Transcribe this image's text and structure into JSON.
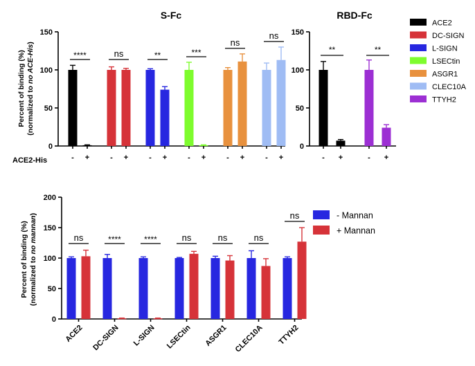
{
  "colors": {
    "ACE2": "#000000",
    "DC-SIGN": "#d63339",
    "L-SIGN": "#2727e0",
    "LSECtin": "#7efc2e",
    "ASGR1": "#e8913e",
    "CLEC10A": "#9fbcf4",
    "TTYH2": "#9c2fd3",
    "minus_mannan": "#2727e0",
    "plus_mannan": "#d63339"
  },
  "chart_data": [
    {
      "id": "sfc",
      "type": "bar",
      "title": "S-Fc",
      "ylabel_line1": "Percent of binding (%)",
      "ylabel_line2_prefix": "(normalized to ",
      "ylabel_line2_italic": "no ACE-His",
      "ylabel_line2_suffix": ")",
      "ylim": [
        0,
        150
      ],
      "yticks": [
        0,
        50,
        100,
        150
      ],
      "x_condition_label": "ACE2-His",
      "groups": [
        {
          "name": "ACE2",
          "bars": [
            {
              "label": "-",
              "value": 100,
              "err": 6
            },
            {
              "label": "+",
              "value": 1,
              "err": 0.5
            }
          ],
          "sig": "****"
        },
        {
          "name": "DC-SIGN",
          "bars": [
            {
              "label": "-",
              "value": 100,
              "err": 4
            },
            {
              "label": "+",
              "value": 100,
              "err": 2
            }
          ],
          "sig": "ns"
        },
        {
          "name": "L-SIGN",
          "bars": [
            {
              "label": "-",
              "value": 100,
              "err": 1.5
            },
            {
              "label": "+",
              "value": 74,
              "err": 4
            }
          ],
          "sig": "**"
        },
        {
          "name": "LSECtin",
          "bars": [
            {
              "label": "-",
              "value": 100,
              "err": 10
            },
            {
              "label": "+",
              "value": 1,
              "err": 0.5
            }
          ],
          "sig": "***"
        },
        {
          "name": "ASGR1",
          "bars": [
            {
              "label": "-",
              "value": 100,
              "err": 3
            },
            {
              "label": "+",
              "value": 111,
              "err": 10
            }
          ],
          "sig": "ns"
        },
        {
          "name": "CLEC10A",
          "bars": [
            {
              "label": "-",
              "value": 100,
              "err": 9
            },
            {
              "label": "+",
              "value": 113,
              "err": 17
            }
          ],
          "sig": "ns"
        }
      ]
    },
    {
      "id": "rbdfc",
      "type": "bar",
      "title": "RBD-Fc",
      "ylim": [
        0,
        150
      ],
      "yticks": [
        0,
        50,
        100,
        150
      ],
      "groups": [
        {
          "name": "ACE2",
          "bars": [
            {
              "label": "-",
              "value": 100,
              "err": 11
            },
            {
              "label": "+",
              "value": 7,
              "err": 1.5
            }
          ],
          "sig": "**"
        },
        {
          "name": "TTYH2",
          "bars": [
            {
              "label": "-",
              "value": 100,
              "err": 13
            },
            {
              "label": "+",
              "value": 24,
              "err": 4
            }
          ],
          "sig": "**"
        }
      ],
      "legend": [
        "ACE2",
        "DC-SIGN",
        "L-SIGN",
        "LSECtin",
        "ASGR1",
        "CLEC10A",
        "TTYH2"
      ]
    },
    {
      "id": "mannan",
      "type": "bar",
      "title": "",
      "ylabel_line1": "Percent of binding (%)",
      "ylabel_line2_prefix": "(normalized to ",
      "ylabel_line2_italic": "no mannan",
      "ylabel_line2_suffix": ")",
      "ylim": [
        0,
        200
      ],
      "yticks": [
        0,
        50,
        100,
        150,
        200
      ],
      "categories": [
        "ACE2",
        "DC-SIGN",
        "L-SIGN",
        "LSECtin",
        "ASGR1",
        "CLEC10A",
        "TTYH2"
      ],
      "series": [
        {
          "name": "- Mannan",
          "values": [
            100,
            100,
            100,
            100,
            100,
            100,
            100
          ],
          "err": [
            2,
            6,
            2,
            1,
            3,
            12,
            2
          ]
        },
        {
          "name": "+ Mannan",
          "values": [
            103,
            1,
            1,
            107,
            96,
            87,
            127
          ],
          "err": [
            10,
            0.5,
            0.5,
            4,
            8,
            12,
            23
          ]
        }
      ],
      "sig": [
        "ns",
        "****",
        "****",
        "ns",
        "ns",
        "ns",
        "ns"
      ],
      "legend_position": "top-right"
    }
  ]
}
